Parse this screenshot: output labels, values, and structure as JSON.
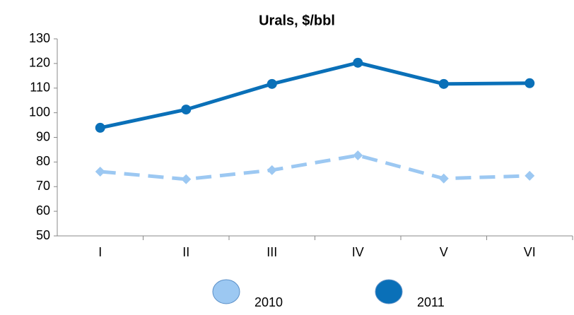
{
  "chart_data": {
    "type": "line",
    "title": "Urals, $/bbl",
    "categories": [
      "I",
      "II",
      "III",
      "IV",
      "V",
      "VI"
    ],
    "series": [
      {
        "name": "2010",
        "color": "#9cc8f2",
        "linestyle": "dashed",
        "marker": "diamond",
        "values": [
          76.1,
          73.0,
          76.7,
          82.7,
          73.3,
          74.4
        ]
      },
      {
        "name": "2011",
        "color": "#0a70b8",
        "linestyle": "solid",
        "marker": "circle",
        "values": [
          93.9,
          101.3,
          111.7,
          120.3,
          111.7,
          112.0
        ]
      }
    ],
    "ylim": [
      50,
      130
    ],
    "yticks": [
      50,
      60,
      70,
      80,
      90,
      100,
      110,
      120,
      130
    ],
    "grid": false,
    "legend": "bottom"
  }
}
